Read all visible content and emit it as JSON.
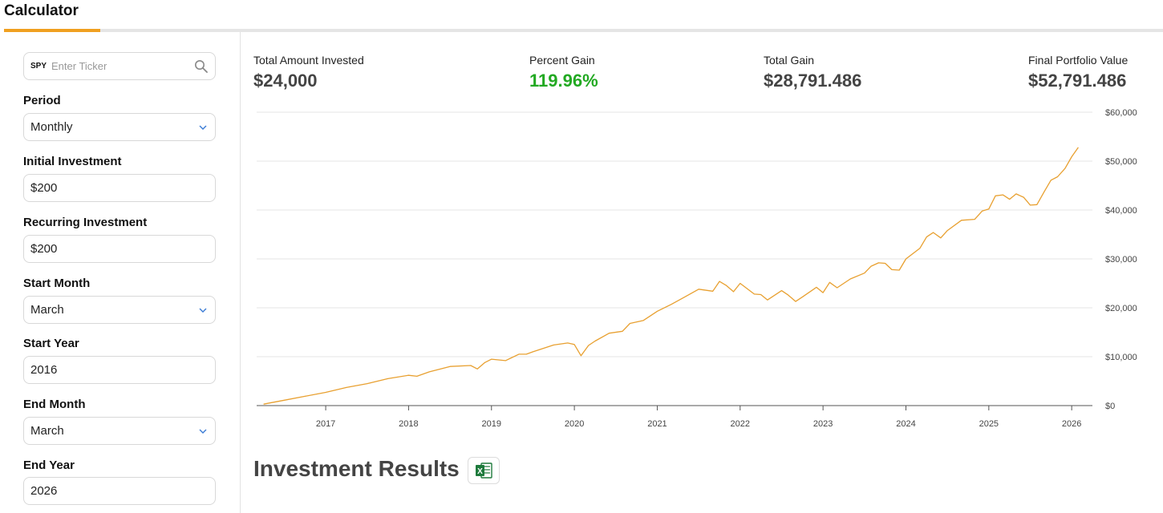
{
  "header": {
    "title": "Calculator"
  },
  "form": {
    "ticker": {
      "prefix": "SPY",
      "placeholder": "Enter Ticker",
      "value": ""
    },
    "period": {
      "label": "Period",
      "value": "Monthly"
    },
    "initial_investment": {
      "label": "Initial Investment",
      "value": "$200"
    },
    "recurring_investment": {
      "label": "Recurring Investment",
      "value": "$200"
    },
    "start_month": {
      "label": "Start Month",
      "value": "March"
    },
    "start_year": {
      "label": "Start Year",
      "value": "2016"
    },
    "end_month": {
      "label": "End Month",
      "value": "March"
    },
    "end_year": {
      "label": "End Year",
      "value": "2026"
    }
  },
  "stats": [
    {
      "label": "Total Amount Invested",
      "value": "$24,000",
      "color": "#444444"
    },
    {
      "label": "Percent Gain",
      "value": "119.96%",
      "color": "#22a922"
    },
    {
      "label": "Total Gain",
      "value": "$28,791.486",
      "color": "#444444"
    },
    {
      "label": "Final Portfolio Value",
      "value": "$52,791.486",
      "color": "#444444"
    }
  ],
  "results": {
    "title": "Investment Results",
    "export_icon": "excel-icon"
  },
  "colors": {
    "accent": "#f0a020",
    "line": "#e8a030",
    "gain": "#22a922"
  },
  "chart_data": {
    "type": "line",
    "title": "",
    "xlabel": "",
    "ylabel": "",
    "x_ticks": [
      "2017",
      "2018",
      "2019",
      "2020",
      "2021",
      "2022",
      "2023",
      "2024",
      "2025",
      "2026"
    ],
    "y_ticks": [
      "$0",
      "$10,000",
      "$20,000",
      "$30,000",
      "$40,000",
      "$50,000",
      "$60,000"
    ],
    "ylim": [
      0,
      60000
    ],
    "xlim": [
      2016.167,
      2026.25
    ],
    "grid": true,
    "series": [
      {
        "x": [
          2016.25,
          2016.5,
          2016.75,
          2017.0,
          2017.25,
          2017.5,
          2017.75,
          2018.0,
          2018.1,
          2018.25,
          2018.5,
          2018.75,
          2018.83,
          2018.92,
          2019.0,
          2019.17,
          2019.33,
          2019.42,
          2019.5,
          2019.75,
          2019.92,
          2020.0,
          2020.08,
          2020.17,
          2020.25,
          2020.42,
          2020.58,
          2020.67,
          2020.83,
          2020.92,
          2021.0,
          2021.17,
          2021.33,
          2021.5,
          2021.67,
          2021.75,
          2021.83,
          2021.92,
          2022.0,
          2022.17,
          2022.25,
          2022.33,
          2022.5,
          2022.58,
          2022.67,
          2022.75,
          2022.92,
          2023.0,
          2023.08,
          2023.17,
          2023.33,
          2023.5,
          2023.58,
          2023.67,
          2023.75,
          2023.83,
          2023.92,
          2024.0,
          2024.17,
          2024.25,
          2024.33,
          2024.42,
          2024.5,
          2024.67,
          2024.83,
          2024.92,
          2025.0,
          2025.08,
          2025.17,
          2025.25,
          2025.33,
          2025.42,
          2025.5,
          2025.58,
          2025.67,
          2025.75,
          2025.83,
          2025.92,
          2026.0,
          2026.08
        ],
        "y": [
          300,
          1100,
          1900,
          2700,
          3700,
          4500,
          5500,
          6200,
          6000,
          6900,
          8000,
          8200,
          7500,
          8800,
          9500,
          9200,
          10500,
          10500,
          11000,
          12400,
          12800,
          12500,
          10200,
          12300,
          13200,
          14800,
          15200,
          16800,
          17400,
          18400,
          19300,
          20700,
          22200,
          23800,
          23400,
          25400,
          24600,
          23300,
          25000,
          22800,
          22700,
          21600,
          23500,
          22600,
          21300,
          22200,
          24200,
          23100,
          25200,
          24100,
          25900,
          27100,
          28500,
          29200,
          29100,
          27800,
          27700,
          30000,
          32200,
          34500,
          35400,
          34300,
          35800,
          37900,
          38100,
          39800,
          40200,
          42900,
          43100,
          42200,
          43300,
          42600,
          41000,
          41100,
          43800,
          46100,
          46800,
          48500,
          50900,
          52800
        ]
      }
    ]
  }
}
